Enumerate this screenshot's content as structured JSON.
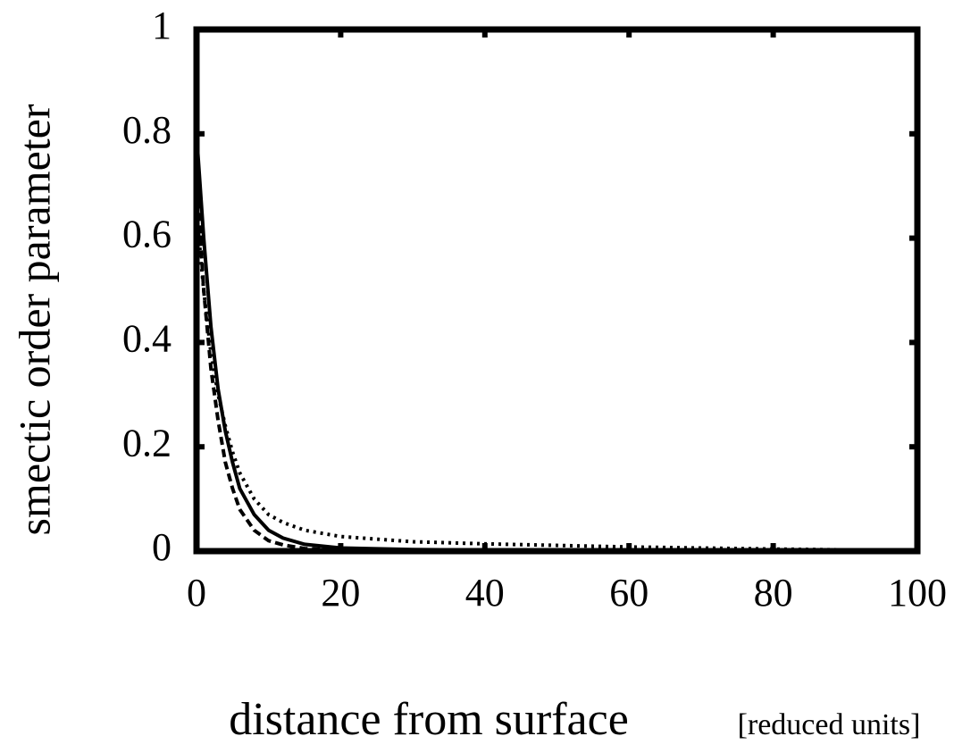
{
  "chart_data": {
    "type": "line",
    "xlabel": "distance from surface",
    "xlabel_units": "[reduced units]",
    "ylabel": "smectic order parameter",
    "x": [
      0,
      1,
      2,
      3,
      4,
      5,
      6,
      8,
      10,
      12,
      15,
      20,
      30,
      40,
      60,
      80,
      100
    ],
    "series": [
      {
        "color": "#000000",
        "dash": "solid",
        "values": [
          0.8,
          0.6,
          0.43,
          0.31,
          0.23,
          0.17,
          0.12,
          0.07,
          0.04,
          0.025,
          0.013,
          0.006,
          0.003,
          0.002,
          0.001,
          0.0005,
          0
        ]
      },
      {
        "color": "#000000",
        "dash": "dashed",
        "values": [
          0.72,
          0.5,
          0.35,
          0.25,
          0.17,
          0.12,
          0.08,
          0.04,
          0.02,
          0.012,
          0.005,
          0.002,
          0.001,
          0.001,
          0.0005,
          0.0002,
          0
        ]
      },
      {
        "color": "#000000",
        "dash": "dotted",
        "values": [
          0.65,
          0.5,
          0.38,
          0.3,
          0.24,
          0.19,
          0.15,
          0.1,
          0.07,
          0.055,
          0.04,
          0.028,
          0.018,
          0.014,
          0.008,
          0.004,
          0.001
        ]
      }
    ],
    "xlim": [
      0,
      100
    ],
    "xticks": [
      0,
      20,
      40,
      60,
      80,
      100
    ],
    "ylim": [
      0,
      1
    ],
    "yticks": [
      0,
      0.2,
      0.4,
      0.6,
      0.8,
      1
    ],
    "grid": false
  }
}
